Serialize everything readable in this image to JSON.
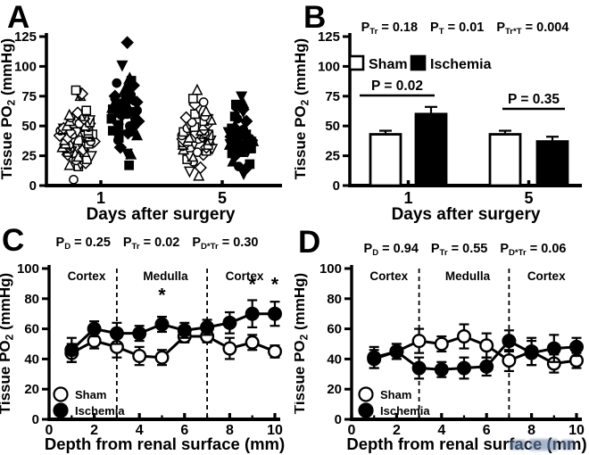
{
  "figure_bg": "#ffffff",
  "ink_color": "#000000",
  "watermark": {
    "color": "#6d86ad"
  },
  "chart_data": [
    {
      "panel": "A",
      "type": "scatter",
      "xlabel": "Days after surgery",
      "ylabel": "Tissue PO₂ (mmHg)",
      "ylim": [
        0,
        125
      ],
      "yticks": [
        0,
        25,
        50,
        75,
        100,
        125
      ],
      "x_categories": [
        "1",
        "5"
      ],
      "groups": [
        {
          "name": "Sham day 1",
          "style": "open",
          "values": [
            5,
            16,
            17,
            18,
            19,
            21,
            22,
            24,
            25,
            26,
            27,
            28,
            28,
            29,
            30,
            31,
            31,
            32,
            33,
            33,
            34,
            35,
            35,
            36,
            37,
            37,
            38,
            38,
            39,
            40,
            40,
            41,
            41,
            42,
            42,
            43,
            43,
            44,
            45,
            45,
            46,
            46,
            47,
            48,
            48,
            49,
            50,
            50,
            51,
            52,
            52,
            53,
            54,
            55,
            56,
            57,
            58,
            59,
            60,
            61,
            62,
            63,
            75,
            76,
            77,
            80,
            80
          ]
        },
        {
          "name": "Ischemia day 1",
          "style": "filled",
          "values": [
            17,
            26,
            27,
            32,
            38,
            40,
            42,
            43,
            44,
            45,
            46,
            47,
            48,
            49,
            50,
            51,
            52,
            53,
            54,
            55,
            56,
            57,
            58,
            59,
            60,
            60,
            61,
            62,
            63,
            63,
            64,
            65,
            65,
            66,
            67,
            68,
            68,
            69,
            70,
            71,
            72,
            73,
            74,
            75,
            76,
            78,
            80,
            82,
            84,
            86,
            88,
            90,
            101,
            120
          ]
        },
        {
          "name": "Sham day 5",
          "style": "open",
          "values": [
            8,
            12,
            15,
            20,
            22,
            24,
            25,
            26,
            28,
            29,
            30,
            31,
            32,
            33,
            34,
            34,
            35,
            36,
            36,
            37,
            38,
            38,
            39,
            39,
            40,
            40,
            41,
            41,
            42,
            42,
            43,
            43,
            44,
            44,
            45,
            46,
            46,
            47,
            48,
            49,
            50,
            51,
            52,
            53,
            54,
            55,
            56,
            57,
            58,
            60,
            62,
            65,
            68,
            70,
            73,
            80
          ]
        },
        {
          "name": "Ischemia day 5",
          "style": "filled",
          "values": [
            10,
            14,
            16,
            18,
            20,
            24,
            25,
            26,
            27,
            28,
            29,
            30,
            30,
            31,
            32,
            32,
            33,
            33,
            34,
            34,
            35,
            35,
            36,
            36,
            37,
            37,
            38,
            38,
            39,
            40,
            40,
            41,
            42,
            43,
            44,
            45,
            46,
            47,
            48,
            50,
            52,
            54,
            56,
            58,
            60,
            62,
            64,
            66,
            68,
            70,
            75
          ]
        }
      ]
    },
    {
      "panel": "B",
      "type": "bar",
      "xlabel": "Days after surgery",
      "ylabel": "Tissue PO₂ (mmHg)",
      "ylim": [
        0,
        125
      ],
      "yticks": [
        0,
        25,
        50,
        75,
        100,
        125
      ],
      "categories": [
        "1",
        "5"
      ],
      "series": [
        {
          "name": "Sham",
          "style": "open",
          "values": [
            43,
            43
          ],
          "errors": [
            3,
            3
          ]
        },
        {
          "name": "Ischemia",
          "style": "filled",
          "values": [
            60,
            37
          ],
          "errors": [
            6,
            4
          ]
        }
      ],
      "legend": [
        "Sham",
        "Ischemia"
      ],
      "stats": [
        {
          "p": "P",
          "sub": "Tr",
          "eq": " = 0.18"
        },
        {
          "p": "P",
          "sub": "T",
          "eq": " = 0.01"
        },
        {
          "p": "P",
          "sub": "Tr*T",
          "eq": " = 0.004"
        }
      ],
      "comparisons": [
        {
          "text": "P = 0.02",
          "pair": 0
        },
        {
          "text": "P = 0.35",
          "pair": 1
        }
      ]
    },
    {
      "panel": "C",
      "type": "line",
      "xlabel": "Depth from renal surface (mm)",
      "ylabel": "Tissue PO₂ (mmHg)",
      "ylim": [
        0,
        100
      ],
      "yticks": [
        0,
        20,
        40,
        60,
        80,
        100
      ],
      "x": [
        1,
        2,
        3,
        4,
        5,
        6,
        7,
        8,
        9,
        10
      ],
      "xticks": [
        0,
        2,
        4,
        6,
        8,
        10
      ],
      "regions": [
        "Cortex",
        "Medulla",
        "Cortex"
      ],
      "dividers": [
        3,
        7
      ],
      "legend": [
        "Sham",
        "Ischemia"
      ],
      "stats": [
        {
          "p": "P",
          "sub": "D",
          "eq": " = 0.25"
        },
        {
          "p": "P",
          "sub": "Tr",
          "eq": " = 0.02"
        },
        {
          "p": "P",
          "sub": "D*Tr",
          "eq": " = 0.30"
        }
      ],
      "series": [
        {
          "name": "Sham",
          "style": "open",
          "values": [
            44,
            52,
            48,
            42,
            41,
            55,
            55,
            47,
            51,
            45
          ],
          "errors": [
            6,
            5,
            7,
            6,
            5,
            4,
            4,
            7,
            5,
            4
          ]
        },
        {
          "name": "Ischemia",
          "style": "filled",
          "values": [
            46,
            60,
            57,
            57,
            63,
            59,
            61,
            64,
            70,
            70
          ],
          "errors": [
            8,
            5,
            7,
            5,
            5,
            5,
            5,
            7,
            9,
            8
          ]
        }
      ],
      "asterisks": [
        {
          "x": 5,
          "y": 82
        },
        {
          "x": 9,
          "y": 89
        },
        {
          "x": 10,
          "y": 89
        }
      ]
    },
    {
      "panel": "D",
      "type": "line",
      "xlabel": "Depth from renal surface (mm)",
      "ylabel": "Tissue PO₂ (mmHg)",
      "ylim": [
        0,
        100
      ],
      "yticks": [
        0,
        20,
        40,
        60,
        80,
        100
      ],
      "x": [
        1,
        2,
        3,
        4,
        5,
        6,
        7,
        8,
        9,
        10
      ],
      "xticks": [
        0,
        2,
        4,
        6,
        8,
        10
      ],
      "regions": [
        "Cortex",
        "Medulla",
        "Cortex"
      ],
      "dividers": [
        3,
        7
      ],
      "legend": [
        "Sham",
        "Ischemia"
      ],
      "stats": [
        {
          "p": "P",
          "sub": "D",
          "eq": " = 0.94"
        },
        {
          "p": "P",
          "sub": "Tr",
          "eq": " = 0.55"
        },
        {
          "p": "P",
          "sub": "D*Tr",
          "eq": " = 0.06"
        }
      ],
      "series": [
        {
          "name": "Sham",
          "style": "open",
          "values": [
            41,
            45,
            52,
            50,
            55,
            49,
            39,
            45,
            37,
            39
          ],
          "errors": [
            7,
            5,
            8,
            5,
            8,
            8,
            7,
            9,
            6,
            5
          ]
        },
        {
          "name": "Ischemia",
          "style": "filled",
          "values": [
            40,
            45,
            34,
            33,
            34,
            35,
            52,
            44,
            47,
            48
          ],
          "errors": [
            6,
            5,
            7,
            5,
            7,
            6,
            7,
            8,
            9,
            6
          ]
        }
      ],
      "asterisks": []
    }
  ]
}
